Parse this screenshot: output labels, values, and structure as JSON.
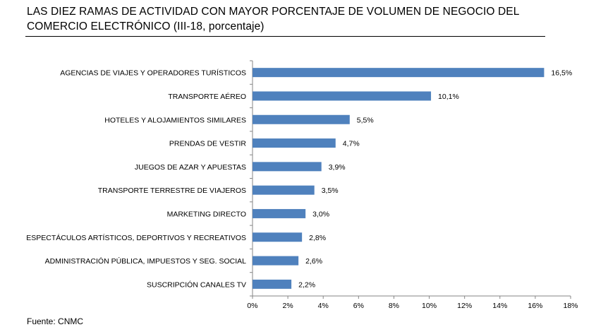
{
  "title": "LAS DIEZ RAMAS DE ACTIVIDAD CON MAYOR PORCENTAJE DE VOLUMEN DE NEGOCIO DEL COMERCIO ELECTRÓNICO (III-18, porcentaje)",
  "source": "Fuente: CNMC",
  "colors": {
    "bar": "#4f81bd",
    "axis": "#868686"
  },
  "chart_data": {
    "type": "bar",
    "orientation": "horizontal",
    "title": "LAS DIEZ RAMAS DE ACTIVIDAD CON MAYOR PORCENTAJE DE VOLUMEN DE NEGOCIO DEL COMERCIO ELECTRÓNICO (III-18, porcentaje)",
    "categories": [
      "AGENCIAS DE VIAJES Y OPERADORES TURÍSTICOS",
      "TRANSPORTE AÉREO",
      "HOTELES  Y ALOJAMIENTOS SIMILARES",
      "PRENDAS DE VESTIR",
      "JUEGOS DE AZAR Y APUESTAS",
      "TRANSPORTE TERRESTRE DE VIAJEROS",
      "MARKETING DIRECTO",
      "ESPECTÁCULOS ARTÍSTICOS, DEPORTIVOS Y RECREATIVOS",
      "ADMINISTRACIÓN PÚBLICA, IMPUESTOS Y SEG. SOCIAL",
      "SUSCRIPCIÓN CANALES TV"
    ],
    "values": [
      16.5,
      10.1,
      5.5,
      4.7,
      3.9,
      3.5,
      3.0,
      2.8,
      2.6,
      2.2
    ],
    "data_labels": [
      "16,5%",
      "10,1%",
      "5,5%",
      "4,7%",
      "3,9%",
      "3,5%",
      "3,0%",
      "2,8%",
      "2,6%",
      "2,2%"
    ],
    "xlim": [
      0,
      18
    ],
    "xticks": [
      "0%",
      "2%",
      "4%",
      "6%",
      "8%",
      "10%",
      "12%",
      "14%",
      "16%",
      "18%"
    ],
    "xlabel": "",
    "ylabel": "",
    "grid": false,
    "legend": "none"
  }
}
